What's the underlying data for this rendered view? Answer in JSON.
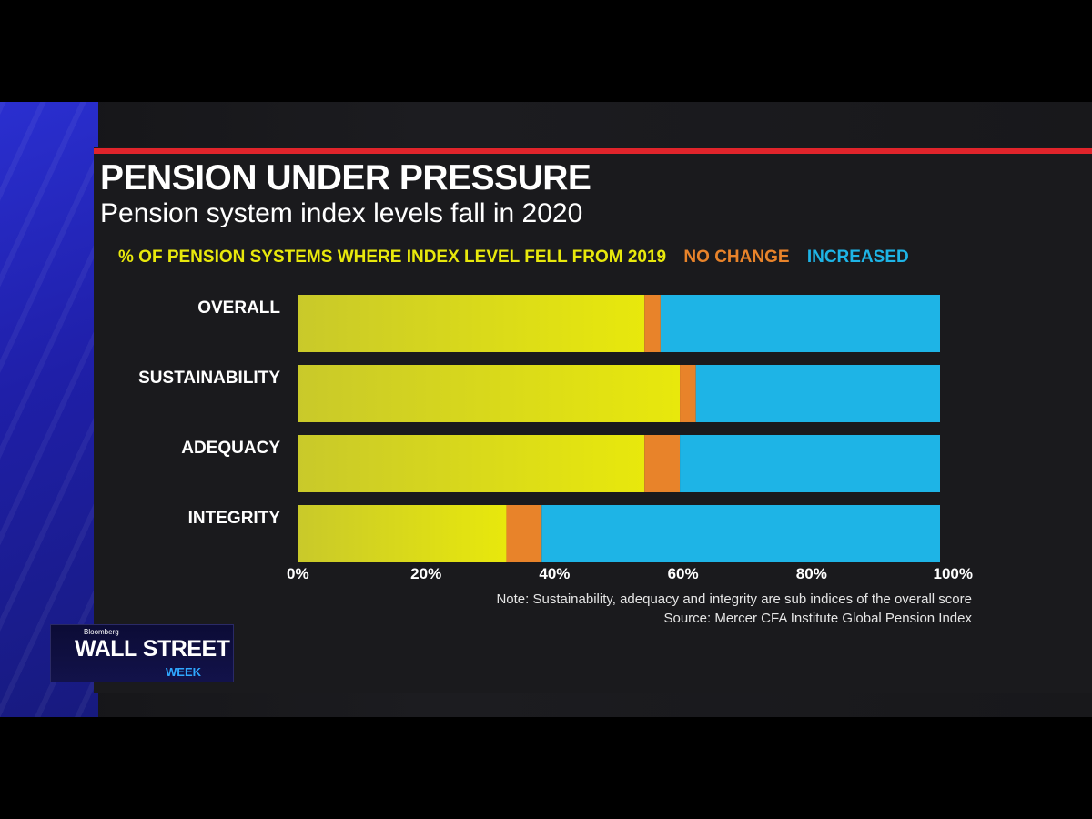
{
  "header": {
    "title": "PENSION UNDER PRESSURE",
    "subtitle": "Pension system index levels fall in 2020"
  },
  "legend": {
    "fell": "% OF PENSION SYSTEMS WHERE INDEX LEVEL FELL FROM 2019",
    "no_change": "NO CHANGE",
    "increased": "INCREASED"
  },
  "colors": {
    "fell": "#e8e80c",
    "no_change": "#e8832a",
    "increased": "#1eb4e6",
    "accent_red": "#e0242b"
  },
  "chart_data": {
    "type": "bar",
    "orientation": "horizontal",
    "stacked": true,
    "categories": [
      "OVERALL",
      "SUSTAINABILITY",
      "ADEQUACY",
      "INTEGRITY"
    ],
    "series": [
      {
        "name": "% OF PENSION SYSTEMS WHERE INDEX LEVEL FELL FROM 2019",
        "values": [
          54,
          59.5,
          54,
          32.5
        ]
      },
      {
        "name": "NO CHANGE",
        "values": [
          2.5,
          2.5,
          5.5,
          5.5
        ]
      },
      {
        "name": "INCREASED",
        "values": [
          43.5,
          38,
          40.5,
          62
        ]
      }
    ],
    "xlim": [
      0,
      100
    ],
    "xticks": [
      "0%",
      "20%",
      "40%",
      "60%",
      "80%",
      "100%"
    ],
    "grid": false,
    "legend_position": "top"
  },
  "notes": {
    "note": "Note: Sustainability, adequacy and integrity are sub indices of the overall score",
    "source": "Source: Mercer CFA Institute Global Pension Index"
  },
  "brand": {
    "small": "Bloomberg",
    "main": "WALL STREET",
    "sub": "WEEK"
  }
}
